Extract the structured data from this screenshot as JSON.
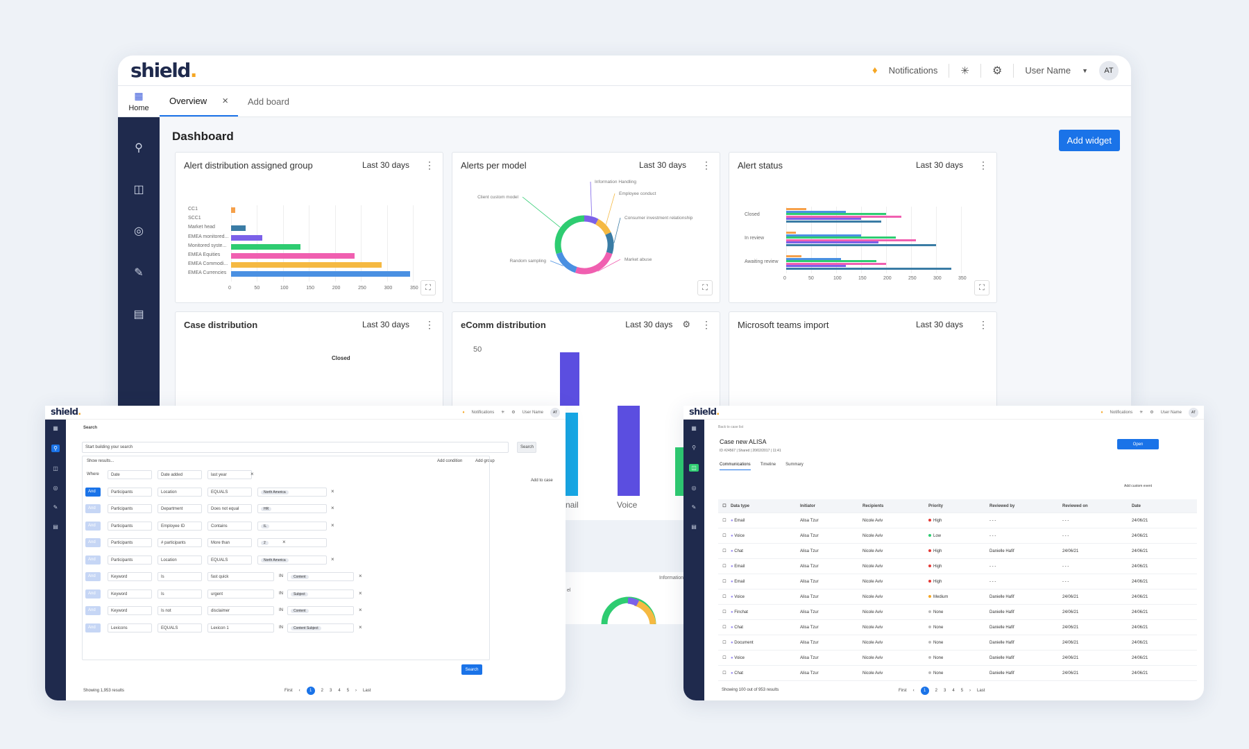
{
  "app": {
    "logo": "shield",
    "logo_dot": ".",
    "notifications": "Notifications",
    "user_name": "User Name",
    "avatar": "AT"
  },
  "tabs": {
    "home": "Home",
    "overview": "Overview",
    "add_board": "Add board"
  },
  "dashboard": {
    "title": "Dashboard",
    "add_widget": "Add widget"
  },
  "widgets": [
    {
      "title": "Alert distribution assigned group",
      "period": "Last 30 days"
    },
    {
      "title": "Alerts per model",
      "period": "Last 30 days"
    },
    {
      "title": "Alert status",
      "period": "Last 30 days"
    },
    {
      "title": "Case distribution",
      "period": "Last 30 days"
    },
    {
      "title": "eComm distribution",
      "period": "Last 30 days"
    },
    {
      "title": "Microsoft teams import",
      "period": "Last 30 days"
    }
  ],
  "chart_data": [
    {
      "type": "bar",
      "orientation": "horizontal",
      "categories": [
        "CC1",
        "SCC1",
        "Market head",
        "EMEA monitored...",
        "Monitored syste...",
        "EMEA Equities",
        "EMEA Commodi...",
        "EMEA Currencies"
      ],
      "values": [
        7,
        0,
        28,
        60,
        133,
        238,
        290,
        345
      ],
      "colors": [
        "#f5a04a",
        "#f5a04a",
        "#3a7ca5",
        "#7b61e8",
        "#2ecc71",
        "#f05fb0",
        "#f5b942",
        "#4a90e2"
      ],
      "xticks": [
        0,
        50,
        100,
        150,
        200,
        250,
        300,
        350
      ],
      "xlim": [
        0,
        350
      ]
    },
    {
      "type": "pie",
      "donut": true,
      "labels": [
        "Information Handling",
        "Employee conduct",
        "Consumer investment relationship",
        "Market abuse",
        "Random sampling",
        "Client custom model"
      ],
      "values": [
        8,
        10,
        12,
        25,
        15,
        30
      ],
      "colors": [
        "#7b61e8",
        "#f5b942",
        "#3a7ca5",
        "#f05fb0",
        "#4a90e2",
        "#2ecc71"
      ]
    },
    {
      "type": "bar",
      "orientation": "horizontal",
      "categories": [
        "Closed",
        "In review",
        "Awaiting review"
      ],
      "series": [
        {
          "values": [
            40,
            20,
            30
          ],
          "color": "#f5a04a"
        },
        {
          "values": [
            120,
            150,
            110
          ],
          "color": "#4a90e2"
        },
        {
          "values": [
            200,
            220,
            180
          ],
          "color": "#2ecc71"
        },
        {
          "values": [
            230,
            260,
            200
          ],
          "color": "#f05fb0"
        },
        {
          "values": [
            150,
            185,
            120
          ],
          "color": "#7b61e8"
        },
        {
          "values": [
            190,
            300,
            330
          ],
          "color": "#3a7ca5"
        }
      ],
      "xticks": [
        0,
        50,
        100,
        150,
        200,
        250,
        300,
        350
      ],
      "xlim": [
        0,
        350
      ]
    }
  ],
  "under": {
    "closed": "Closed",
    "y50": "50",
    "email": "nail",
    "voice": "Voice",
    "info": "Information",
    "el": "el"
  },
  "search": {
    "title": "Search",
    "placeholder": "Start building your search",
    "search_btn": "Search",
    "show_results": "Show results...",
    "add_condition": "Add condition",
    "add_group": "Add group",
    "add_to_case": "Add to case",
    "search_submit": "Search",
    "showing": "Showing 1,953 results",
    "rows": [
      {
        "a": "Where",
        "b": "Date",
        "c": "Date added",
        "d": "last year",
        "e": ""
      },
      {
        "a": "And",
        "b": "Participants",
        "c": "Location",
        "d": "EQUALS",
        "e": "North America"
      },
      {
        "a": "And",
        "b": "Participants",
        "c": "Department",
        "d": "Does not equal",
        "e": "HR"
      },
      {
        "a": "And",
        "b": "Participants",
        "c": "Employee ID",
        "d": "Contains",
        "e": "IL"
      },
      {
        "a": "And",
        "b": "Participants",
        "c": "# participants",
        "d": "More than",
        "e": "2"
      },
      {
        "a": "And",
        "b": "Participants",
        "c": "Location",
        "d": "EQUALS",
        "e": "North America"
      },
      {
        "a": "And",
        "b": "Keyword",
        "c": "Is",
        "d": "fast  quick",
        "e": "Content"
      },
      {
        "a": "And",
        "b": "Keyword",
        "c": "Is",
        "d": "urgent",
        "e": "Subject"
      },
      {
        "a": "And",
        "b": "Keyword",
        "c": "Is not",
        "d": "disclaimer",
        "e": "Content"
      },
      {
        "a": "And",
        "b": "Lexicons",
        "c": "EQUALS",
        "d": "Lexicon 1",
        "e": "Content  Subject"
      }
    ],
    "in": "IN",
    "first": "First",
    "last": "Last",
    "pages": [
      "1",
      "2",
      "3",
      "4",
      "5"
    ]
  },
  "case": {
    "back": "Back to case list",
    "title": "Case new ALISA",
    "meta": "ID #24567  |  Shared  |  20/02/2017 | 11:41",
    "open": "Open",
    "tabs": [
      "Communications",
      "Timeline",
      "Summary"
    ],
    "add_event": "Add custom event",
    "showing": "Showing 100 out of 953 results",
    "headers": [
      "Data type",
      "Initiator",
      "Recipients",
      "Priority",
      "Reviewed by",
      "Reviewed on",
      "Date"
    ],
    "rows": [
      {
        "type": "Email",
        "init": "Alisa Tzur",
        "rec": "Nicole Aviv",
        "pri": "High",
        "rb": "- - -",
        "ro": "- - -",
        "date": "24/06/21"
      },
      {
        "type": "Voice",
        "init": "Alisa Tzur",
        "rec": "Nicole Aviv",
        "pri": "Low",
        "rb": "- - -",
        "ro": "- - -",
        "date": "24/06/21"
      },
      {
        "type": "Chat",
        "init": "Alisa Tzur",
        "rec": "Nicole Aviv",
        "pri": "High",
        "rb": "Danielle Hafif",
        "ro": "24/06/21",
        "date": "24/06/21"
      },
      {
        "type": "Email",
        "init": "Alisa Tzur",
        "rec": "Nicole Aviv",
        "pri": "High",
        "rb": "- - -",
        "ro": "- - -",
        "date": "24/06/21"
      },
      {
        "type": "Email",
        "init": "Alisa Tzur",
        "rec": "Nicole Aviv",
        "pri": "High",
        "rb": "- - -",
        "ro": "- - -",
        "date": "24/06/21"
      },
      {
        "type": "Voice",
        "init": "Alisa Tzur",
        "rec": "Nicole Aviv",
        "pri": "Medium",
        "rb": "Danielle Hafif",
        "ro": "24/06/21",
        "date": "24/06/21"
      },
      {
        "type": "Finchat",
        "init": "Alisa Tzur",
        "rec": "Nicole Aviv",
        "pri": "None",
        "rb": "Danielle Hafif",
        "ro": "24/06/21",
        "date": "24/06/21"
      },
      {
        "type": "Chat",
        "init": "Alisa Tzur",
        "rec": "Nicole Aviv",
        "pri": "None",
        "rb": "Danielle Hafif",
        "ro": "24/06/21",
        "date": "24/06/21"
      },
      {
        "type": "Document",
        "init": "Alisa Tzur",
        "rec": "Nicole Aviv",
        "pri": "None",
        "rb": "Danielle Hafif",
        "ro": "24/06/21",
        "date": "24/06/21"
      },
      {
        "type": "Voice",
        "init": "Alisa Tzur",
        "rec": "Nicole Aviv",
        "pri": "None",
        "rb": "Danielle Hafif",
        "ro": "24/06/21",
        "date": "24/06/21"
      },
      {
        "type": "Chat",
        "init": "Alisa Tzur",
        "rec": "Nicole Aviv",
        "pri": "None",
        "rb": "Danielle Hafif",
        "ro": "24/06/21",
        "date": "24/06/21"
      }
    ]
  }
}
